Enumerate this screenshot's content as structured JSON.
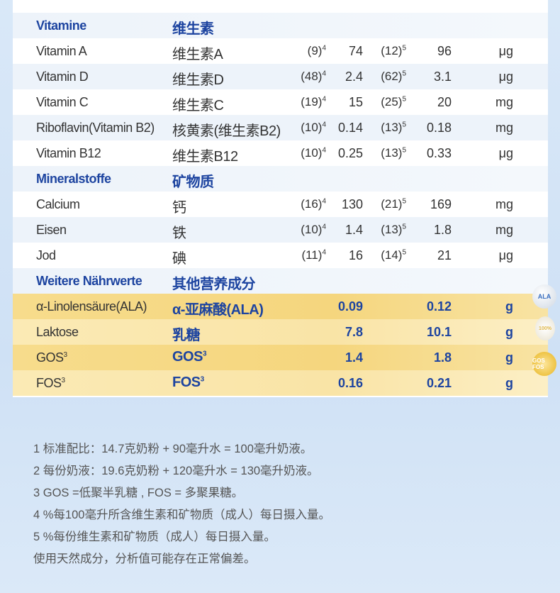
{
  "sections": [
    {
      "en": "Vitamine",
      "zh": "维生素",
      "rows": [
        {
          "en": "Vitamin A",
          "zh": "维生素A",
          "ref1": "(9)",
          "v1": "74",
          "ref2": "(12)",
          "v2": "96",
          "unit": "μg"
        },
        {
          "en": "Vitamin D",
          "zh": "维生素D",
          "ref1": "(48)",
          "v1": "2.4",
          "ref2": "(62)",
          "v2": "3.1",
          "unit": "μg"
        },
        {
          "en": "Vitamin C",
          "zh": "维生素C",
          "ref1": "(19)",
          "v1": "15",
          "ref2": "(25)",
          "v2": "20",
          "unit": "mg"
        },
        {
          "en": "Riboflavin(Vitamin B2)",
          "zh": "核黄素(维生素B2)",
          "ref1": "(10)",
          "v1": "0.14",
          "ref2": "(13)",
          "v2": "0.18",
          "unit": "mg"
        },
        {
          "en": "Vitamin B12",
          "zh": "维生素B12",
          "ref1": "(10)",
          "v1": "0.25",
          "ref2": "(13)",
          "v2": "0.33",
          "unit": "μg"
        }
      ]
    },
    {
      "en": "Mineralstoffe",
      "zh": "矿物质",
      "rows": [
        {
          "en": "Calcium",
          "zh": "钙",
          "ref1": "(16)",
          "v1": "130",
          "ref2": "(21)",
          "v2": "169",
          "unit": "mg"
        },
        {
          "en": "Eisen",
          "zh": "铁",
          "ref1": "(10)",
          "v1": "1.4",
          "ref2": "(13)",
          "v2": "1.8",
          "unit": "mg"
        },
        {
          "en": "Jod",
          "zh": "碘",
          "ref1": "(11)",
          "v1": "16",
          "ref2": "(14)",
          "v2": "21",
          "unit": "μg"
        }
      ]
    },
    {
      "en": "Weitere Nährwerte",
      "zh": "其他营养成分",
      "rows": [
        {
          "en": "α-Linolensäure(ALA)",
          "zh": "α-亚麻酸(ALA)",
          "v1": "0.09",
          "v2": "0.12",
          "unit": "g"
        },
        {
          "en": "Laktose",
          "zh": "乳糖",
          "v1": "7.8",
          "v2": "10.1",
          "unit": "g"
        },
        {
          "en": "GOS",
          "sup": "3",
          "zh": "GOS",
          "v1": "1.4",
          "v2": "1.8",
          "unit": "g"
        },
        {
          "en": "FOS",
          "sup": "3",
          "zh": "FOS",
          "v1": "0.16",
          "v2": "0.21",
          "unit": "g"
        }
      ]
    }
  ],
  "ref1_sup": "4",
  "ref2_sup": "5",
  "badges": [
    "ALA",
    "100%",
    "GOS FOS"
  ],
  "notes": [
    "1 标准配比：14.7克奶粉 + 90毫升水 = 100毫升奶液。",
    "2 每份奶液：19.6克奶粉 + 120毫升水 = 130毫升奶液。",
    "3 GOS =低聚半乳糖 , FOS = 多聚果糖。",
    "4 %每100毫升所含维生素和矿物质（成人）每日摄入量。",
    "5 %每份维生素和矿物质（成人）每日摄入量。",
    "使用天然成分，分析值可能存在正常偏差。"
  ],
  "colors": {
    "accent": "#1d44a0",
    "highlight": "#f7dc8c"
  }
}
